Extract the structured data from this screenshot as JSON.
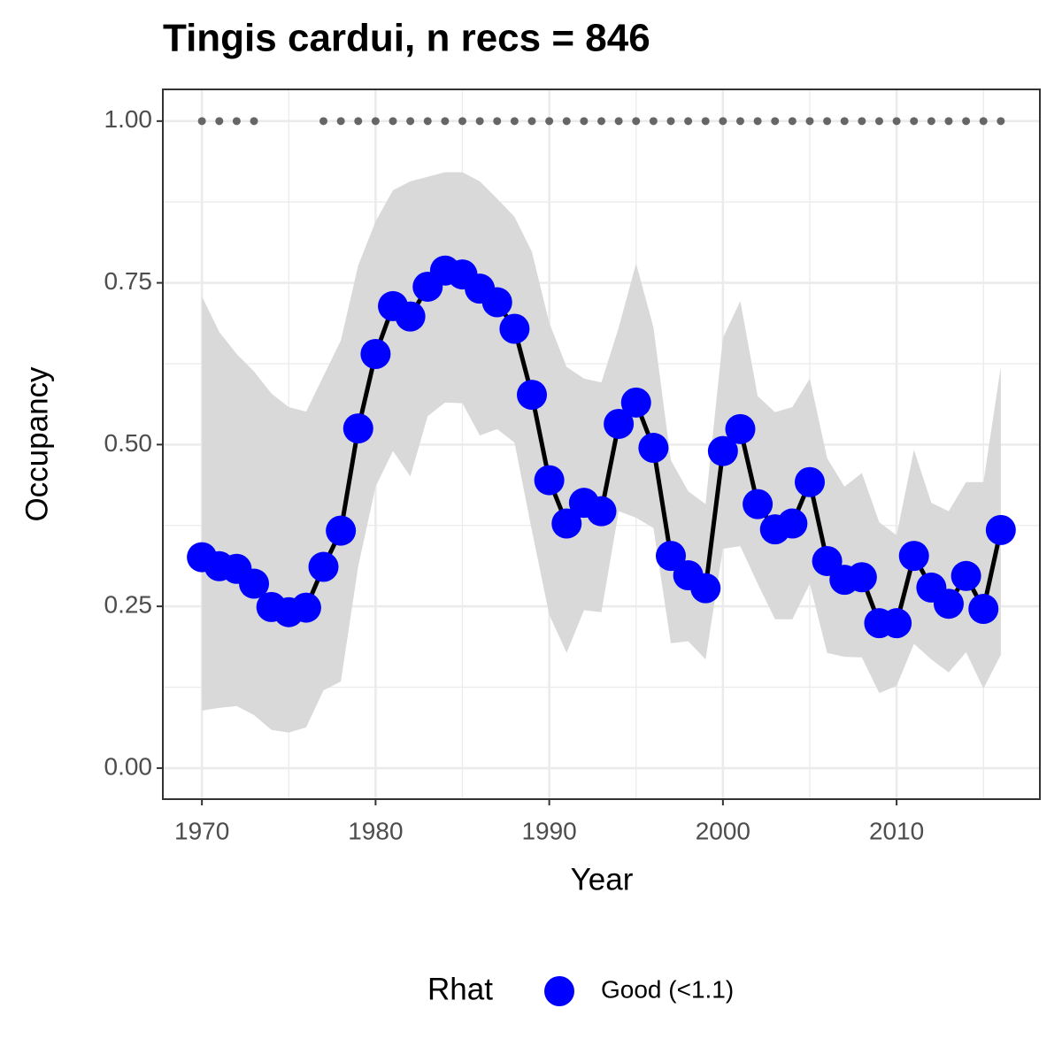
{
  "chart_data": {
    "type": "line",
    "title": "Tingis cardui, n recs = 846",
    "x_label": "Year",
    "y_label": "Occupancy",
    "x": [
      1970,
      1971,
      1972,
      1973,
      1974,
      1975,
      1976,
      1977,
      1978,
      1979,
      1980,
      1981,
      1982,
      1983,
      1984,
      1985,
      1986,
      1987,
      1988,
      1989,
      1990,
      1991,
      1992,
      1993,
      1994,
      1995,
      1996,
      1997,
      1998,
      1999,
      2000,
      2001,
      2002,
      2003,
      2004,
      2005,
      2006,
      2007,
      2008,
      2009,
      2010,
      2011,
      2012,
      2013,
      2014,
      2015,
      2016
    ],
    "series": [
      {
        "name": "Good (<1.1)",
        "color": "#0000ff",
        "line_color": "#000000",
        "values": [
          0.326,
          0.312,
          0.308,
          0.285,
          0.249,
          0.241,
          0.248,
          0.311,
          0.367,
          0.525,
          0.64,
          0.714,
          0.698,
          0.744,
          0.769,
          0.763,
          0.741,
          0.72,
          0.679,
          0.577,
          0.445,
          0.378,
          0.41,
          0.397,
          0.532,
          0.565,
          0.495,
          0.328,
          0.298,
          0.278,
          0.49,
          0.524,
          0.408,
          0.369,
          0.378,
          0.442,
          0.32,
          0.291,
          0.295,
          0.224,
          0.224,
          0.328,
          0.279,
          0.254,
          0.297,
          0.246,
          0.368
        ]
      }
    ],
    "upper": [
      0.729,
      0.674,
      0.64,
      0.613,
      0.579,
      0.558,
      0.551,
      0.606,
      0.661,
      0.777,
      0.845,
      0.893,
      0.907,
      0.914,
      0.921,
      0.921,
      0.907,
      0.88,
      0.852,
      0.798,
      0.688,
      0.62,
      0.602,
      0.596,
      0.681,
      0.78,
      0.681,
      0.476,
      0.428,
      0.408,
      0.665,
      0.722,
      0.575,
      0.55,
      0.558,
      0.602,
      0.479,
      0.435,
      0.456,
      0.38,
      0.36,
      0.492,
      0.41,
      0.397,
      0.442,
      0.442,
      0.62
    ],
    "lower": [
      0.089,
      0.093,
      0.096,
      0.082,
      0.059,
      0.055,
      0.063,
      0.12,
      0.134,
      0.312,
      0.435,
      0.49,
      0.451,
      0.544,
      0.565,
      0.564,
      0.514,
      0.524,
      0.503,
      0.367,
      0.237,
      0.178,
      0.244,
      0.241,
      0.397,
      0.387,
      0.371,
      0.193,
      0.196,
      0.168,
      0.339,
      0.343,
      0.285,
      0.23,
      0.23,
      0.285,
      0.178,
      0.172,
      0.171,
      0.116,
      0.127,
      0.192,
      0.168,
      0.148,
      0.179,
      0.123,
      0.175
    ],
    "ribbon_color": "#d9d9d9",
    "records": {
      "color": "#666666",
      "x": [
        1970,
        1971,
        1972,
        1973,
        1977,
        1978,
        1979,
        1980,
        1981,
        1982,
        1983,
        1984,
        1985,
        1986,
        1987,
        1988,
        1989,
        1990,
        1991,
        1992,
        1993,
        1994,
        1995,
        1996,
        1997,
        1998,
        1999,
        2000,
        2001,
        2002,
        2003,
        2004,
        2005,
        2006,
        2007,
        2008,
        2009,
        2010,
        2011,
        2012,
        2013,
        2014,
        2015,
        2016
      ],
      "values": [
        1,
        1,
        1,
        1,
        1,
        1,
        1,
        1,
        1,
        1,
        1,
        1,
        1,
        1,
        1,
        1,
        1,
        1,
        1,
        1,
        1,
        1,
        1,
        1,
        1,
        1,
        1,
        1,
        1,
        1,
        1,
        1,
        1,
        1,
        1,
        1,
        1,
        1,
        1,
        1,
        1,
        1,
        1,
        1
      ]
    },
    "xlim": [
      1967.75,
      2018.25
    ],
    "ylim": [
      -0.048,
      1.049
    ],
    "xticks": [
      1970,
      1980,
      1990,
      2000,
      2010
    ],
    "yticks": [
      {
        "value": 0,
        "label": "0.00"
      },
      {
        "value": 0.25,
        "label": "0.25"
      },
      {
        "value": 0.5,
        "label": "0.50"
      },
      {
        "value": 0.75,
        "label": "0.75"
      },
      {
        "value": 1,
        "label": "1.00"
      }
    ],
    "xminor": [
      1975,
      1985,
      1995,
      2005,
      2015
    ],
    "yminor": [
      0.125,
      0.375,
      0.625,
      0.875
    ],
    "grid": true,
    "legend_title": "Rhat",
    "legend_position": "bottom"
  }
}
